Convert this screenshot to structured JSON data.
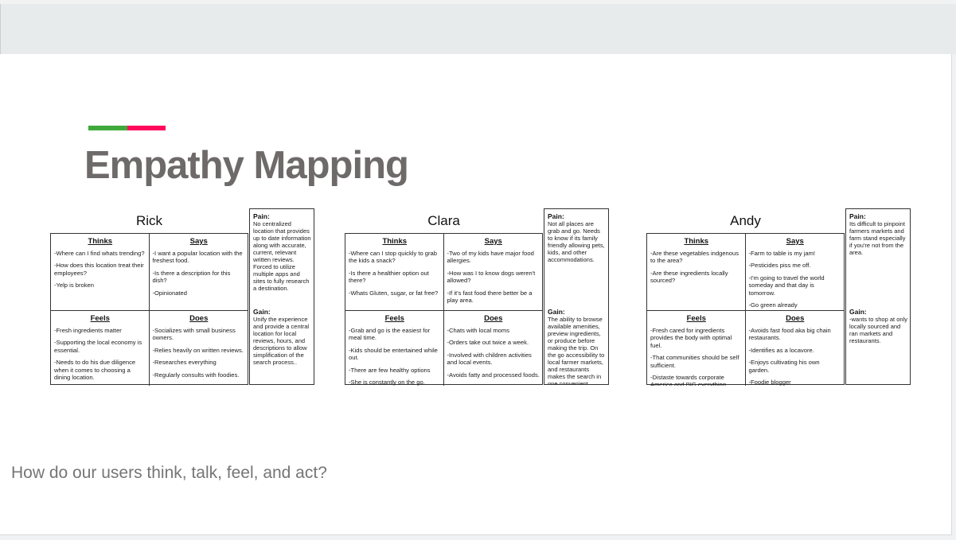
{
  "slide": {
    "title": "Empathy Mapping",
    "question": "How do our users think, talk, feel, and act?",
    "accent": {
      "green": "#3fa93c",
      "pink": "#ff075d"
    },
    "personas": [
      {
        "name": "Rick",
        "quadrants": [
          {
            "label": "Thinks",
            "items": [
              "-Where can I find whats trending?",
              "-How does this location treat their employees?",
              "-Yelp is broken"
            ]
          },
          {
            "label": "Says",
            "items": [
              "-I want a popular location with the freshest food.",
              "-Is there a description for this dish?",
              "-Opinionated"
            ]
          },
          {
            "label": "Feels",
            "items": [
              "-Fresh ingredients matter",
              "-Supporting the local economy is essential.",
              "-Needs to do his due diligence when it comes to choosing a dining location."
            ]
          },
          {
            "label": "Does",
            "items": [
              "-Socializes with small business owners.",
              "-Relies heavily on written reviews.",
              "-Researches everything",
              "-Regularly consults with foodies."
            ]
          }
        ],
        "pain": {
          "label": "Pain:",
          "text": "No centralized location that provides up to date information along with accurate, current, relevant written reviews. Forced to utilize multiple apps and sites to fully research a destination."
        },
        "gain": {
          "label": "Gain:",
          "text": "Unify the experience and provide a central location for local reviews, hours, and descriptions to allow simplification of the search process.."
        }
      },
      {
        "name": "Clara",
        "quadrants": [
          {
            "label": "Thinks",
            "items": [
              "-Where can I stop quickly to grab the kids a snack?",
              "-Is there a healthier option out there?",
              "-Whats Gluten, sugar, or fat free?"
            ]
          },
          {
            "label": "Says",
            "items": [
              "-Two of my kids have major food allergies.",
              "-How was I to know dogs weren't allowed?",
              "-If it's fast food there better be a play area."
            ]
          },
          {
            "label": "Feels",
            "items": [
              "-Grab and go is the easiest for meal time.",
              "-Kids should be entertained while out.",
              "-There are few healthy options",
              "-She is constantly on the go."
            ]
          },
          {
            "label": "Does",
            "items": [
              "-Chats with local moms",
              "-Orders take out twice a week.",
              "-Involved with children activities and local events.",
              "-Avoids fatty and processed foods."
            ]
          }
        ],
        "pain": {
          "label": "Pain:",
          "text": "Not all places are grab and go. Needs to know if its family friendly allowing pets, kids, and other accommodations."
        },
        "gain": {
          "label": "Gain:",
          "text": "The ability to browse available amenities, preview ingredients, or produce before making the trip. On the go accessibility to local farmer markets, and restaurants makes the search in one convenient location"
        }
      },
      {
        "name": "Andy",
        "quadrants": [
          {
            "label": "Thinks",
            "items": [
              "-Are these vegetables indgenous to the area?",
              "-Are these ingredients locally sourced?"
            ]
          },
          {
            "label": "Says",
            "items": [
              "-Farm to table is my jam!",
              "-Pesticides piss me off.",
              "-I'm going to travel the world someday and that day is tomorrow.",
              "-Go green already"
            ]
          },
          {
            "label": "Feels",
            "items": [
              "-Fresh cared for ingredients provides the body with optimal fuel.",
              "-That communities should be self sufficient.",
              "-Distaste towards corporate America and BIG everything."
            ]
          },
          {
            "label": "Does",
            "items": [
              "-Avoids fast food aka big chain restaurants.",
              "-Identifies as a locavore.",
              "-Enjoys cultivating his own garden.",
              "-Foodie blogger"
            ]
          }
        ],
        "pain": {
          "label": "Pain:",
          "text": "Its difficult to pinpoint farmers markets and farm stand especially if you're not from the area."
        },
        "gain": {
          "label": "Gain:",
          "text": "-wants to shop at only locally sourced and ran markets and restaurants."
        }
      }
    ]
  }
}
